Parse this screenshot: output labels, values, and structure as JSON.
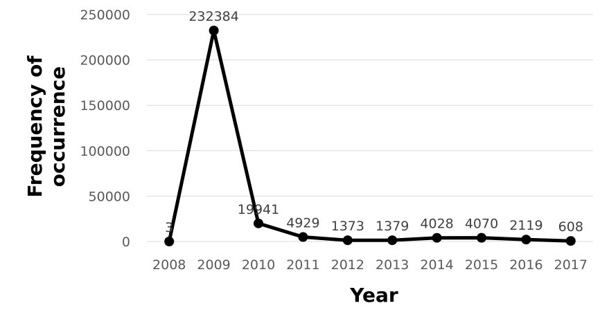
{
  "chart_data": {
    "type": "line",
    "title": "",
    "xlabel": "Year",
    "ylabel_lines": [
      "Frequency of",
      "occurrence"
    ],
    "categories": [
      "2008",
      "2009",
      "2010",
      "2011",
      "2012",
      "2013",
      "2014",
      "2015",
      "2016",
      "2017"
    ],
    "values": [
      3,
      232384,
      19941,
      4929,
      1373,
      1379,
      4028,
      4070,
      2119,
      608
    ],
    "data_labels": [
      "3",
      "232384",
      "19941",
      "4929",
      "1373",
      "1379",
      "4028",
      "4070",
      "2119",
      "608"
    ],
    "y_ticks": [
      "0",
      "50000",
      "100000",
      "150000",
      "200000",
      "250000"
    ],
    "ylim": [
      0,
      250000
    ],
    "grid": true,
    "legend": "none",
    "line_color": "#000000",
    "grid_color": "#d9d9d9"
  }
}
